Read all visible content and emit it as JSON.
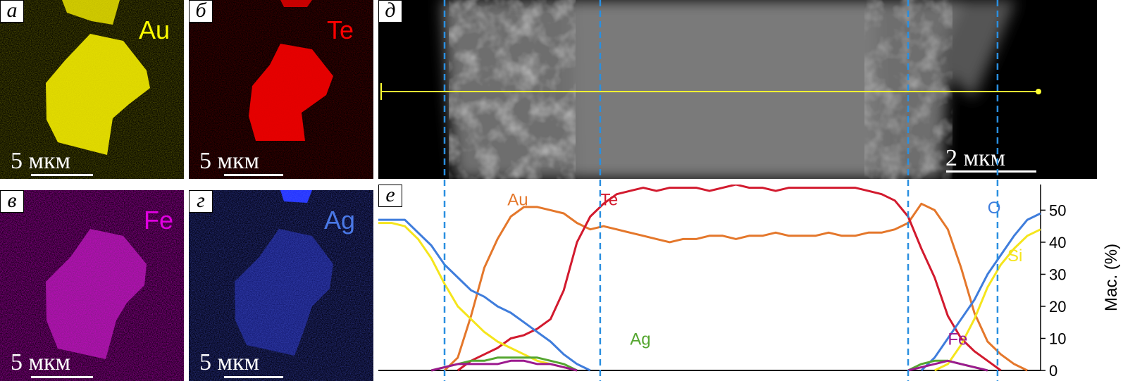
{
  "maps": {
    "a": {
      "label": "а",
      "element": "Au",
      "scale": "5",
      "unit": "мкм",
      "color": "#ffff00"
    },
    "b": {
      "label": "б",
      "element": "Te",
      "scale": "5",
      "unit": "мкм",
      "color": "#ff0000"
    },
    "v": {
      "label": "в",
      "element": "Fe",
      "scale": "5",
      "unit": "мкм",
      "color": "#e000e0"
    },
    "g": {
      "label": "г",
      "element": "Ag",
      "scale": "5",
      "unit": "мкм",
      "color": "#1a2cff"
    }
  },
  "sem": {
    "label": "д",
    "scale": "2",
    "unit": "мкм"
  },
  "profile": {
    "label": "е"
  },
  "chart_data": {
    "type": "line",
    "ylabel": "Мас. (%)",
    "ylim": [
      0,
      58
    ],
    "yticks": [
      0,
      10,
      20,
      30,
      40,
      50
    ],
    "x_range": [
      0,
      100
    ],
    "x": [
      0,
      2,
      4,
      6,
      8,
      10,
      12,
      14,
      16,
      18,
      20,
      22,
      24,
      26,
      28,
      30,
      32,
      34,
      36,
      38,
      40,
      42,
      44,
      46,
      48,
      50,
      52,
      54,
      56,
      58,
      60,
      62,
      64,
      66,
      68,
      70,
      72,
      74,
      76,
      78,
      80,
      82,
      84,
      86,
      88,
      90,
      92,
      94,
      96,
      98,
      100
    ],
    "series": [
      {
        "name": "Au",
        "color": "#e4772b",
        "label_x": 19.5,
        "label_y": 51.5,
        "values": [
          null,
          null,
          null,
          null,
          null,
          0,
          4,
          17,
          32,
          41,
          48,
          51,
          51,
          50,
          49,
          46,
          44,
          45,
          44,
          43,
          42,
          41,
          40,
          41,
          41,
          42,
          42,
          41,
          42,
          42,
          43,
          42,
          42,
          42,
          43,
          42,
          42,
          43,
          43,
          44,
          46,
          52,
          50,
          44,
          32,
          18,
          9,
          5,
          2,
          0,
          null
        ]
      },
      {
        "name": "Te",
        "color": "#d21a2e",
        "label_x": 33.5,
        "label_y": 51.5,
        "values": [
          null,
          null,
          null,
          null,
          null,
          null,
          0,
          3,
          5,
          7,
          10,
          11,
          13,
          16,
          25,
          40,
          48,
          52,
          55,
          56,
          57,
          56,
          57,
          57,
          57,
          56,
          57,
          58,
          57,
          57,
          56,
          57,
          57,
          57,
          57,
          57,
          57,
          56,
          55,
          53,
          48,
          38,
          29,
          17,
          10,
          6,
          3,
          0,
          null,
          null,
          null
        ]
      },
      {
        "name": "O",
        "color": "#3f7ddc",
        "label_x": 92,
        "label_y": 49,
        "values": [
          47,
          47,
          47,
          43,
          39,
          33,
          29,
          25,
          23,
          20,
          18,
          15,
          12,
          9,
          5,
          2,
          0,
          null,
          null,
          null,
          null,
          null,
          null,
          null,
          null,
          null,
          null,
          null,
          null,
          null,
          null,
          null,
          null,
          null,
          null,
          null,
          null,
          null,
          null,
          null,
          null,
          0,
          4,
          10,
          16,
          22,
          30,
          36,
          42,
          47,
          49
        ]
      },
      {
        "name": "Si",
        "color": "#f5e51c",
        "label_x": 95,
        "label_y": 34,
        "values": [
          46,
          46,
          45,
          41,
          35,
          27,
          20,
          16,
          12,
          9,
          7,
          5,
          3,
          2,
          1,
          0,
          null,
          null,
          null,
          null,
          null,
          null,
          null,
          null,
          null,
          null,
          null,
          null,
          null,
          null,
          null,
          null,
          null,
          null,
          null,
          null,
          null,
          null,
          null,
          null,
          null,
          null,
          0,
          2,
          8,
          16,
          26,
          33,
          38,
          42,
          44
        ]
      },
      {
        "name": "Ag",
        "color": "#55a630",
        "label_x": 38,
        "label_y": 8,
        "values": [
          null,
          null,
          null,
          null,
          0,
          1,
          2,
          3,
          3,
          4,
          4,
          4,
          4,
          3,
          2,
          0,
          null,
          null,
          null,
          null,
          null,
          null,
          null,
          null,
          null,
          null,
          null,
          null,
          null,
          null,
          null,
          null,
          null,
          null,
          null,
          null,
          null,
          null,
          null,
          null,
          0,
          2,
          3,
          3,
          2,
          1,
          0,
          null,
          null,
          null,
          null
        ]
      },
      {
        "name": "Fe",
        "color": "#9c1a8f",
        "label_x": 86,
        "label_y": 8,
        "values": [
          null,
          null,
          null,
          null,
          0,
          1,
          2,
          2,
          2,
          2,
          3,
          3,
          2,
          2,
          1,
          0,
          null,
          null,
          null,
          null,
          null,
          null,
          null,
          null,
          null,
          null,
          null,
          null,
          null,
          null,
          null,
          null,
          null,
          null,
          null,
          null,
          null,
          null,
          null,
          null,
          0,
          1,
          2,
          3,
          2,
          1,
          0,
          null,
          null,
          null,
          null
        ]
      }
    ],
    "boundaries": [
      10,
      33.5,
      80,
      93.5
    ]
  }
}
